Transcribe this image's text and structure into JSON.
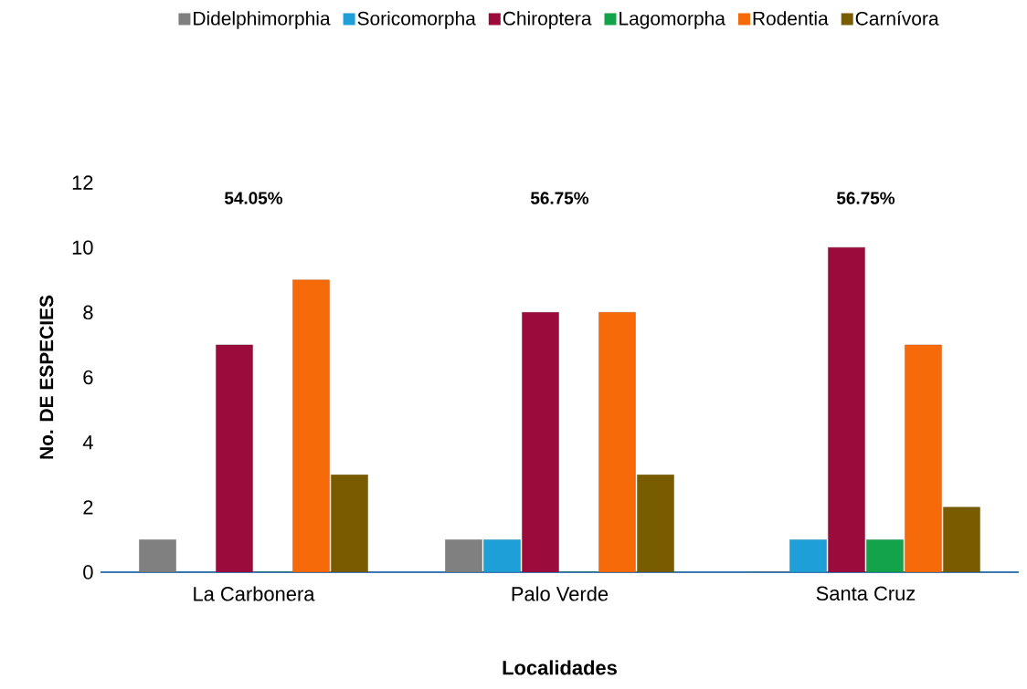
{
  "chart_data": {
    "type": "bar",
    "xlabel": "Localidades",
    "ylabel": "No. DE ESPECIES",
    "categories": [
      "La Carbonera",
      "Palo Verde",
      "Santa Cruz"
    ],
    "series": [
      {
        "name": "Didelphimorphia",
        "color": "#808080",
        "values": [
          1,
          1,
          0
        ]
      },
      {
        "name": "Soricomorpha",
        "color": "#1e9fd8",
        "values": [
          0,
          1,
          1
        ]
      },
      {
        "name": "Chiroptera",
        "color": "#9b0b3c",
        "values": [
          7,
          8,
          10
        ]
      },
      {
        "name": "Lagomorpha",
        "color": "#13a34a",
        "values": [
          0,
          0,
          1
        ]
      },
      {
        "name": "Rodentia",
        "color": "#f76a0a",
        "values": [
          9,
          8,
          7
        ]
      },
      {
        "name": "Carnívora",
        "color": "#7a5c00",
        "values": [
          3,
          3,
          2
        ]
      }
    ],
    "annotations": [
      "54.05%",
      "56.75%",
      "56.75%"
    ],
    "ylim": [
      0,
      12
    ],
    "yticks": [
      0,
      2,
      4,
      6,
      8,
      10,
      12
    ],
    "grid": false,
    "legend": "top"
  }
}
